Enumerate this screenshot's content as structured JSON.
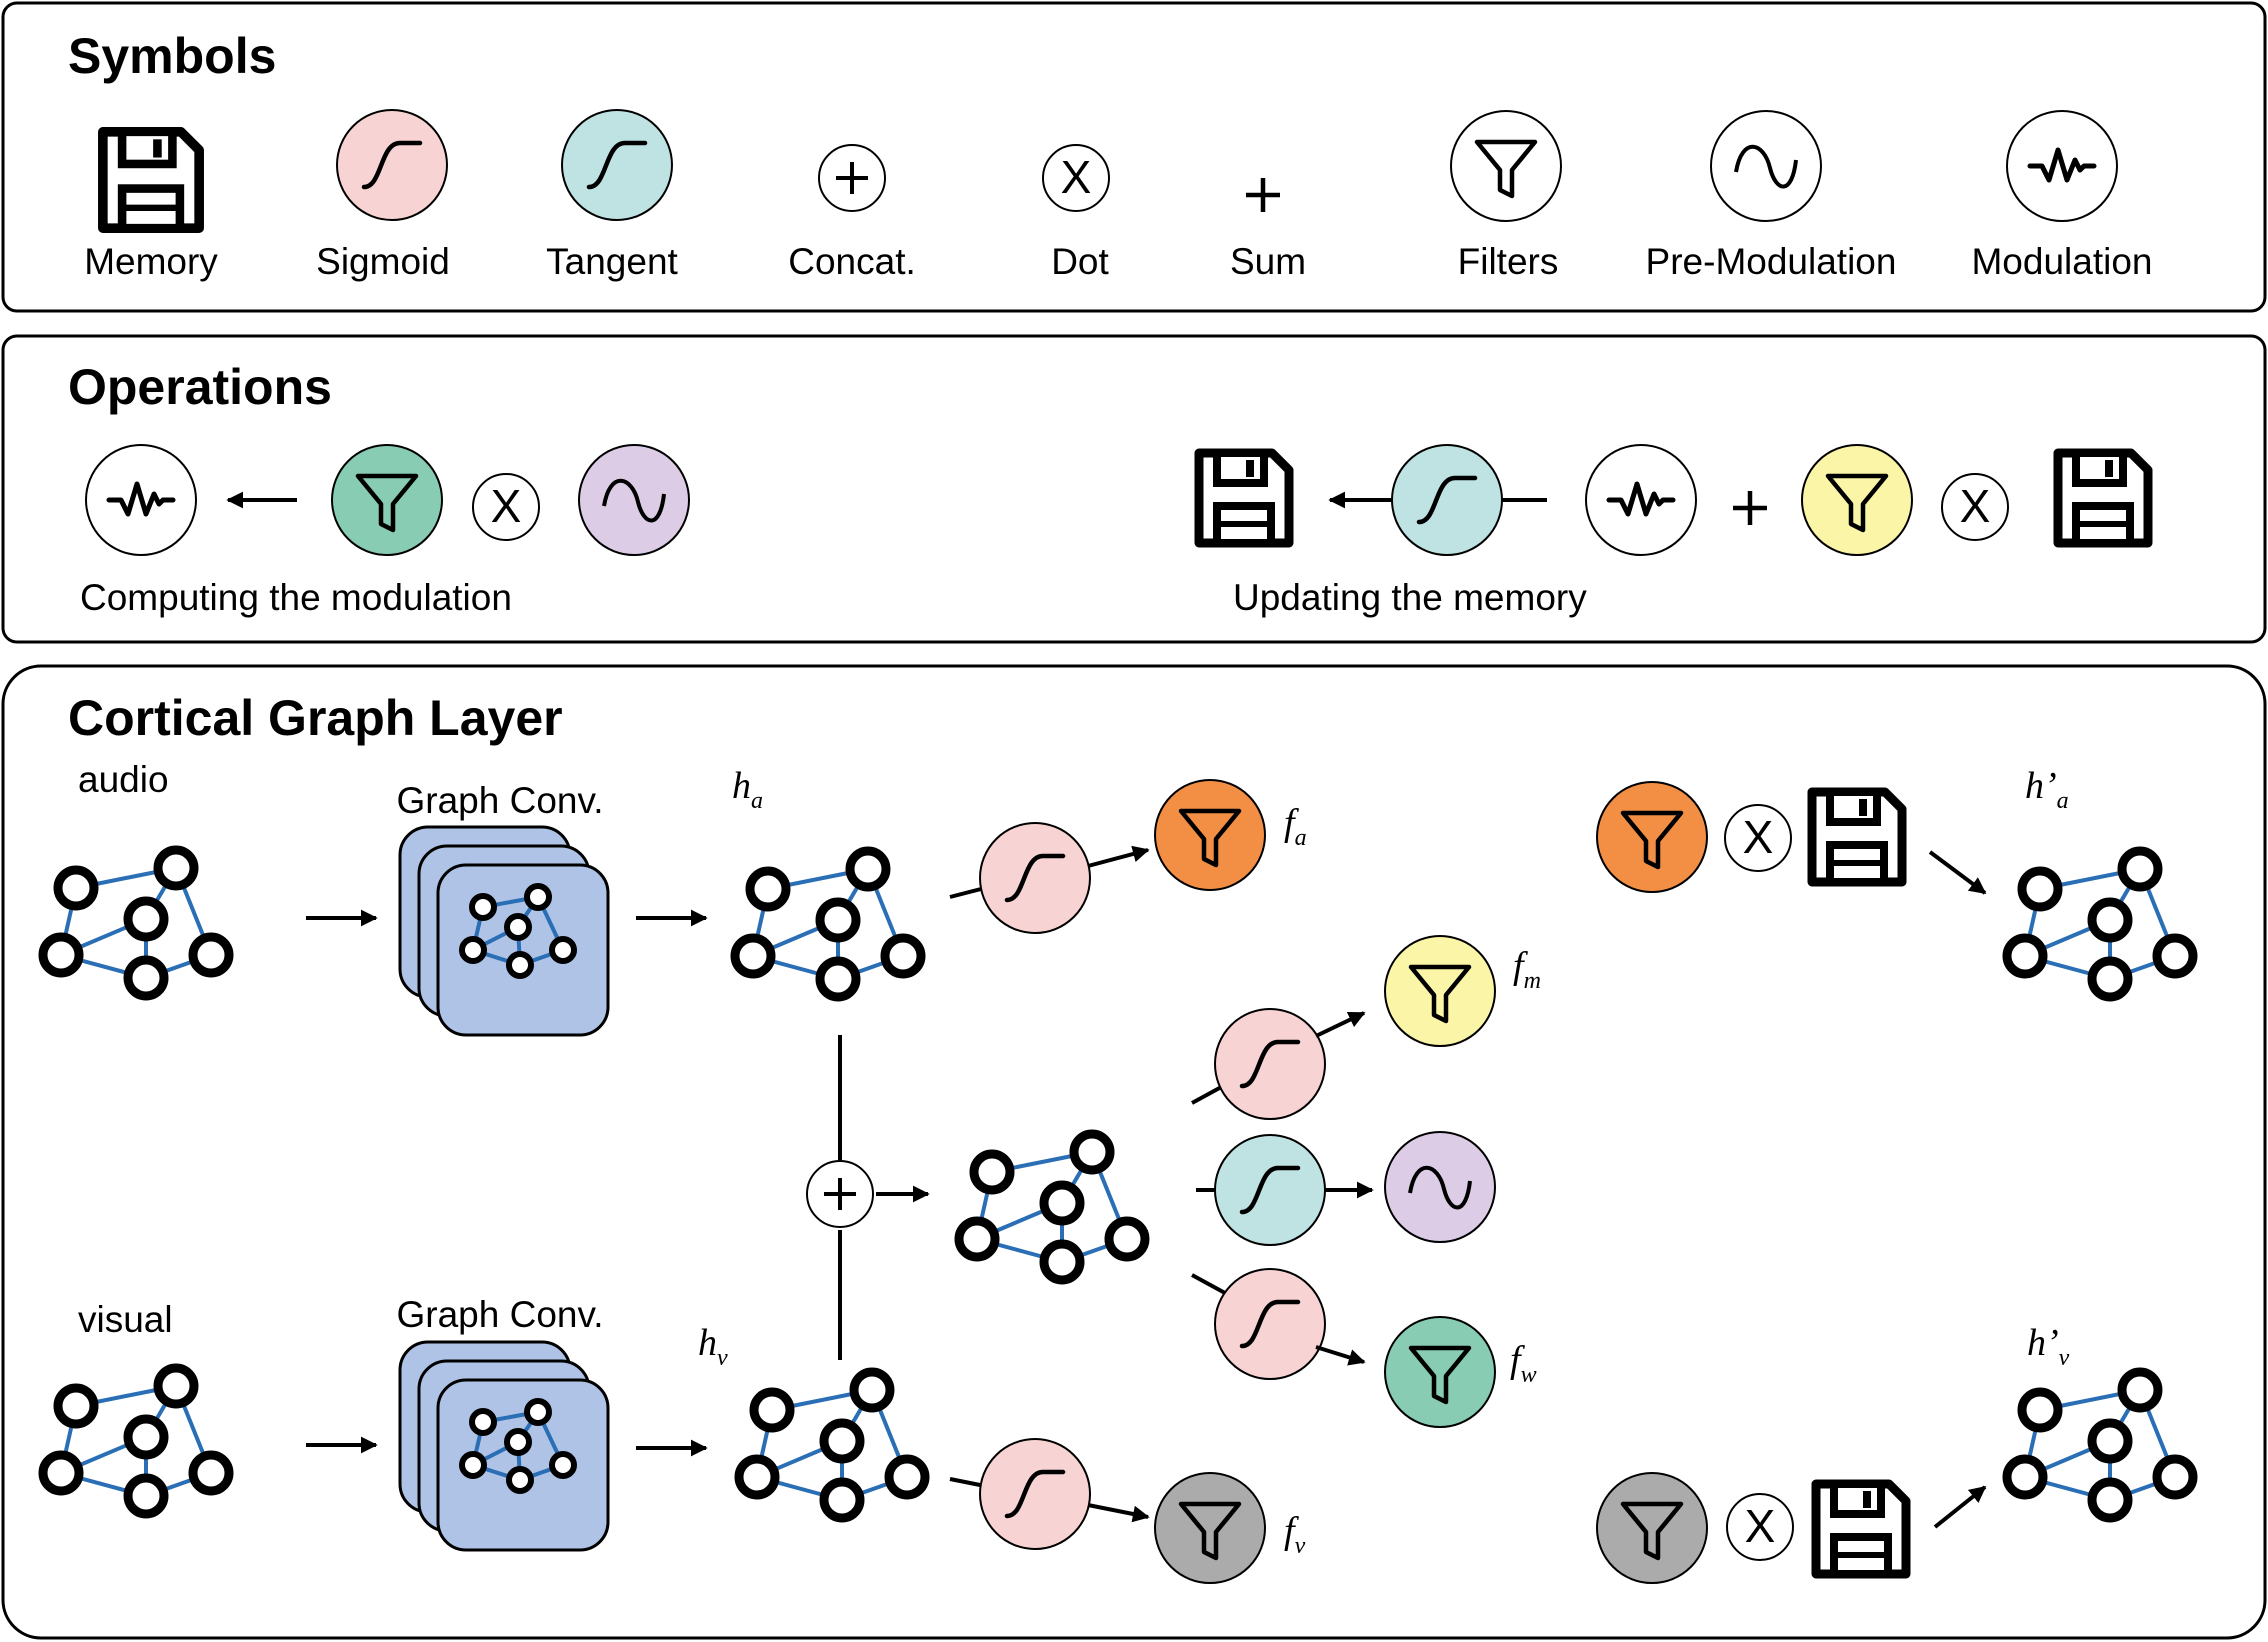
{
  "panels": {
    "symbols": {
      "title": "Symbols",
      "labels": {
        "memory": "Memory",
        "sigmoid": "Sigmoid",
        "tangent": "Tangent",
        "concat": "Concat.",
        "dot": "Dot",
        "sum": "Sum",
        "filters": "Filters",
        "pre_modulation": "Pre-Modulation",
        "modulation": "Modulation"
      }
    },
    "operations": {
      "title": "Operations",
      "computing": "Computing the modulation",
      "updating": "Updating the memory"
    },
    "cortical": {
      "title": "Cortical Graph Layer",
      "audio": "audio",
      "visual": "visual",
      "graph_conv": "Graph Conv.",
      "h_a": [
        "h",
        "a"
      ],
      "h_v": [
        "h",
        "v"
      ],
      "f_a": [
        "f",
        "a"
      ],
      "f_m": [
        "f",
        "m"
      ],
      "f_w": [
        "f",
        "w"
      ],
      "f_v": [
        "f",
        "v"
      ],
      "hp_a": [
        "h’",
        "a"
      ],
      "hp_v": [
        "h’",
        "v"
      ]
    }
  },
  "glyphs": {
    "dot": "X",
    "plus": "+"
  },
  "colors": {
    "sigmoid": "#f8d3d3",
    "tangent": "#bfe2e2",
    "filter_audio": "#f28f45",
    "filter_m": "#fbf5a8",
    "filter_w": "#87ccb3",
    "filter_visual": "#ababab",
    "pre_modulation": "#dccce6",
    "graph_conv": "#aec3e6",
    "edge": "#2a6fb5"
  }
}
